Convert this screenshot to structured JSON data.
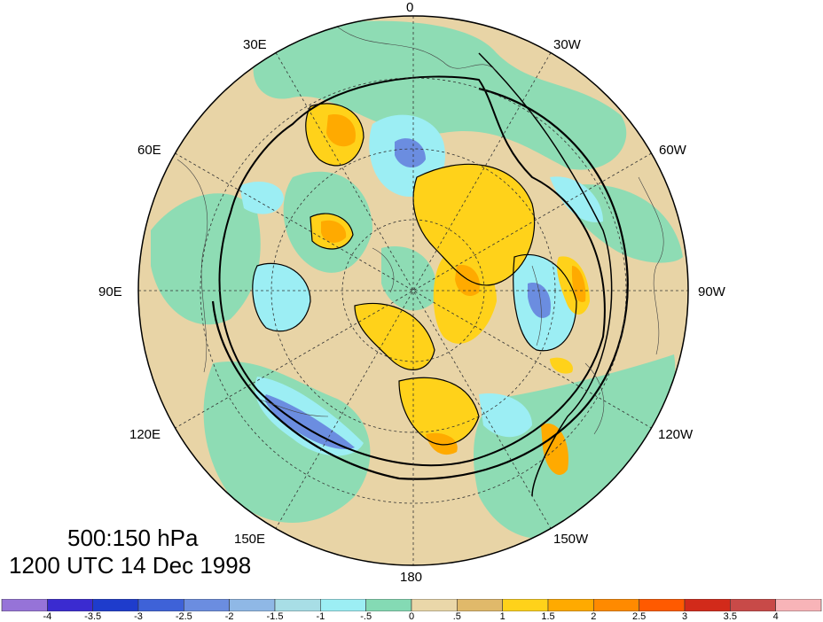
{
  "map": {
    "projection": "north-polar-stereographic",
    "meridian_labels": [
      "0",
      "30W",
      "60W",
      "90W",
      "120W",
      "150W",
      "180",
      "150E",
      "120E",
      "90E",
      "60E",
      "30E"
    ]
  },
  "title": {
    "level": "500:150 hPa",
    "valid_time": "1200 UTC 14 Dec 1998"
  },
  "colorbar": {
    "tick_labels": [
      "-4",
      "-3.5",
      "-3",
      "-2.5",
      "-2",
      "-1.5",
      "-1",
      "-.5",
      "0",
      ".5",
      "1",
      "1.5",
      "2",
      "2.5",
      "3",
      "3.5",
      "4"
    ],
    "colors": [
      "#9673d8",
      "#3a2bd0",
      "#1e3ccc",
      "#3e62d8",
      "#6b8de0",
      "#8fb8e6",
      "#a8dee6",
      "#9ceef4",
      "#84dab4",
      "#ead7a9",
      "#e0b96a",
      "#ffd21a",
      "#ffaa00",
      "#ff8a00",
      "#ff5a00",
      "#d22a1a",
      "#c84a48",
      "#f8b4b8"
    ]
  },
  "palette": {
    "tan": "#e8d4a6",
    "teal": "#8edcb4",
    "cyan": "#9ceef4",
    "yellow": "#ffd21a",
    "orange": "#ffaa00",
    "blue": "#6b8de0"
  }
}
